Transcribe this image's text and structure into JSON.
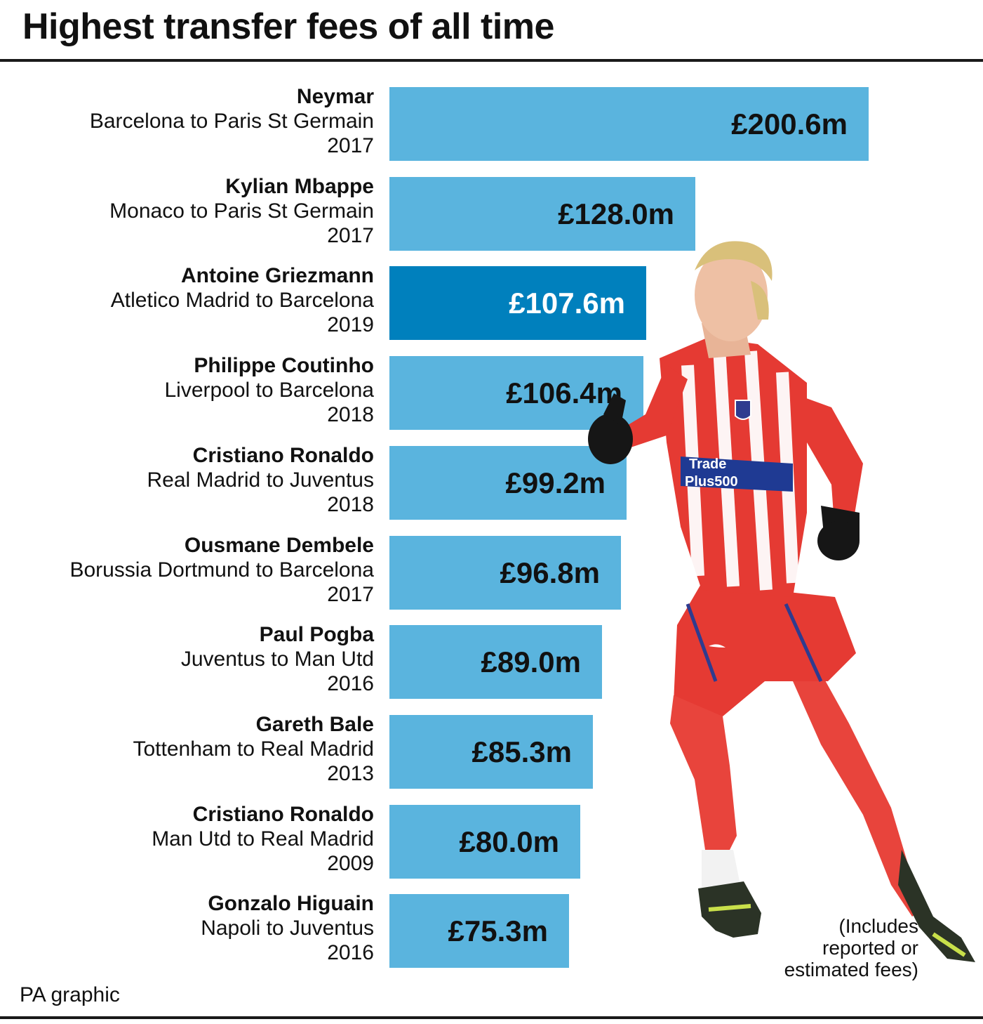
{
  "title": "Highest transfer fees of all time",
  "source": "PA graphic",
  "footnote": [
    "(Includes",
    "reported or",
    "estimated fees)"
  ],
  "colors": {
    "bar": "#5ab4de",
    "highlight_bar": "#0080bd",
    "rule": "#1a1a1a"
  },
  "chart_data": {
    "type": "bar",
    "orientation": "horizontal",
    "unit": "£m",
    "xlim": [
      0,
      200.6
    ],
    "grid": false,
    "categories": [
      "Neymar",
      "Kylian Mbappe",
      "Antoine Griezmann",
      "Philippe Coutinho",
      "Cristiano Ronaldo",
      "Ousmane Dembele",
      "Paul Pogba",
      "Gareth Bale",
      "Cristiano Ronaldo",
      "Gonzalo Higuain"
    ],
    "values": [
      200.6,
      128.0,
      107.6,
      106.4,
      99.2,
      96.8,
      89.0,
      85.3,
      80.0,
      75.3
    ],
    "rows": [
      {
        "name": "Neymar",
        "route": "Barcelona to Paris St Germain",
        "year": "2017",
        "value": 200.6,
        "label": "£200.6m",
        "highlight": false
      },
      {
        "name": "Kylian Mbappe",
        "route": "Monaco to Paris St Germain",
        "year": "2017",
        "value": 128.0,
        "label": "£128.0m",
        "highlight": false
      },
      {
        "name": "Antoine Griezmann",
        "route": "Atletico Madrid to Barcelona",
        "year": "2019",
        "value": 107.6,
        "label": "£107.6m",
        "highlight": true
      },
      {
        "name": "Philippe Coutinho",
        "route": "Liverpool to Barcelona",
        "year": "2018",
        "value": 106.4,
        "label": "£106.4m",
        "highlight": false
      },
      {
        "name": "Cristiano Ronaldo",
        "route": "Real Madrid to Juventus",
        "year": "2018",
        "value": 99.2,
        "label": "£99.2m",
        "highlight": false
      },
      {
        "name": "Ousmane Dembele",
        "route": "Borussia Dortmund to Barcelona",
        "year": "2017",
        "value": 96.8,
        "label": "£96.8m",
        "highlight": false
      },
      {
        "name": "Paul Pogba",
        "route": "Juventus to Man Utd",
        "year": "2016",
        "value": 89.0,
        "label": "£89.0m",
        "highlight": false
      },
      {
        "name": "Gareth Bale",
        "route": "Tottenham to Real Madrid",
        "year": "2013",
        "value": 85.3,
        "label": "£85.3m",
        "highlight": false
      },
      {
        "name": "Cristiano Ronaldo",
        "route": "Man Utd to Real Madrid",
        "year": "2009",
        "value": 80.0,
        "label": "£80.0m",
        "highlight": false
      },
      {
        "name": "Gonzalo Higuain",
        "route": "Napoli to Juventus",
        "year": "2016",
        "value": 75.3,
        "label": "£75.3m",
        "highlight": false
      }
    ]
  },
  "photo": {
    "subject": "footballer in red and white striped kit running",
    "shirt_sponsor": [
      "Trade",
      "Plus500"
    ]
  }
}
